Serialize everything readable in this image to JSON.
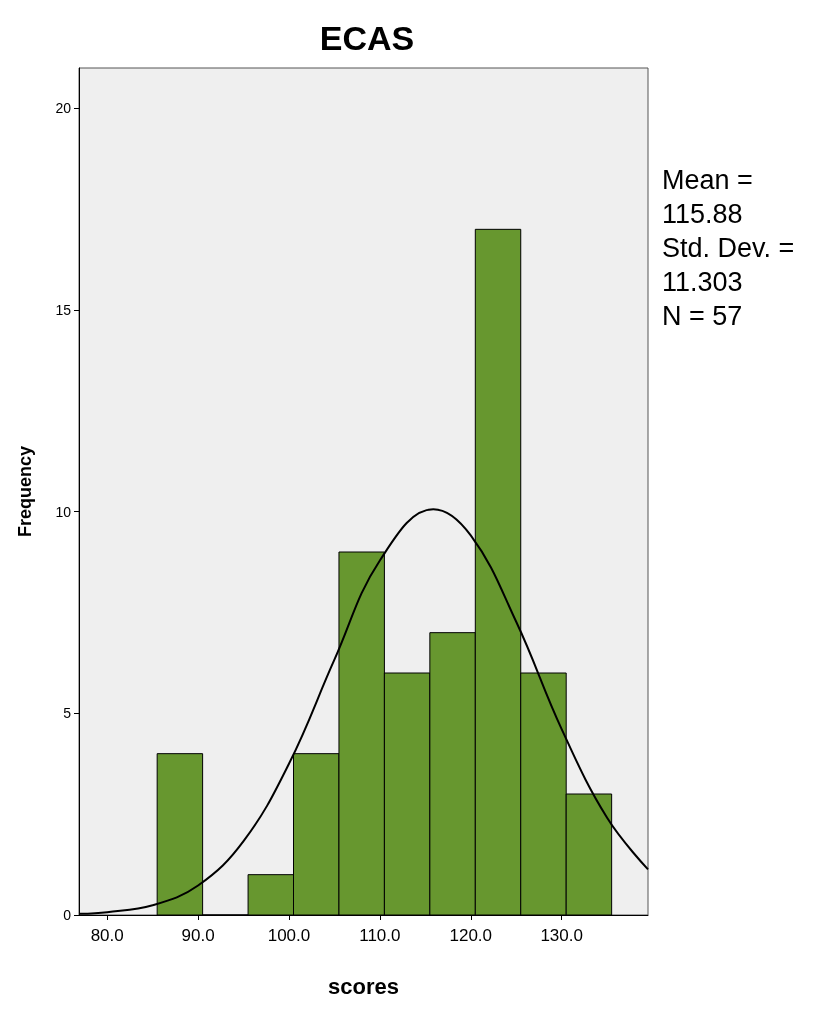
{
  "chart_data": {
    "type": "histogram",
    "title": "ECAS",
    "xlabel": "scores",
    "ylabel": "Frequency",
    "bins": [
      85.5,
      90.5,
      95.5,
      100.5,
      105.5,
      110.5,
      115.5,
      120.5,
      125.5,
      130.5,
      135.5
    ],
    "values": [
      4,
      0,
      1,
      4,
      9,
      6,
      7,
      17,
      6,
      3
    ],
    "color": "#67972f",
    "series": [
      {
        "type": "line",
        "color": "#000000",
        "x": [
          77,
          80,
          85,
          90,
          95,
          100,
          105,
          110,
          115.88,
          120,
          125,
          130,
          135,
          139.5
        ],
        "values": [
          0.03,
          0.07,
          0.24,
          0.73,
          1.83,
          3.75,
          6.33,
          8.79,
          10.06,
          9.41,
          7.27,
          4.61,
          2.41,
          1.13
        ]
      }
    ],
    "xlim": [
      76.9,
      139.5
    ],
    "xticks": [
      {
        "value": 80,
        "label": "80.0"
      },
      {
        "value": 90,
        "label": "90.0"
      },
      {
        "value": 100,
        "label": "100.0"
      },
      {
        "value": 110,
        "label": "110.0"
      },
      {
        "value": 120,
        "label": "120.0"
      },
      {
        "value": 130,
        "label": "130.0"
      }
    ],
    "ylim": [
      0,
      21
    ],
    "yticks": [
      0,
      5,
      10,
      15,
      20
    ],
    "grid": false,
    "marker": "none",
    "line_style": "solid",
    "annotations": [
      "Mean = 115.88",
      "Std. Dev. = 11.303",
      "N = 57"
    ]
  }
}
